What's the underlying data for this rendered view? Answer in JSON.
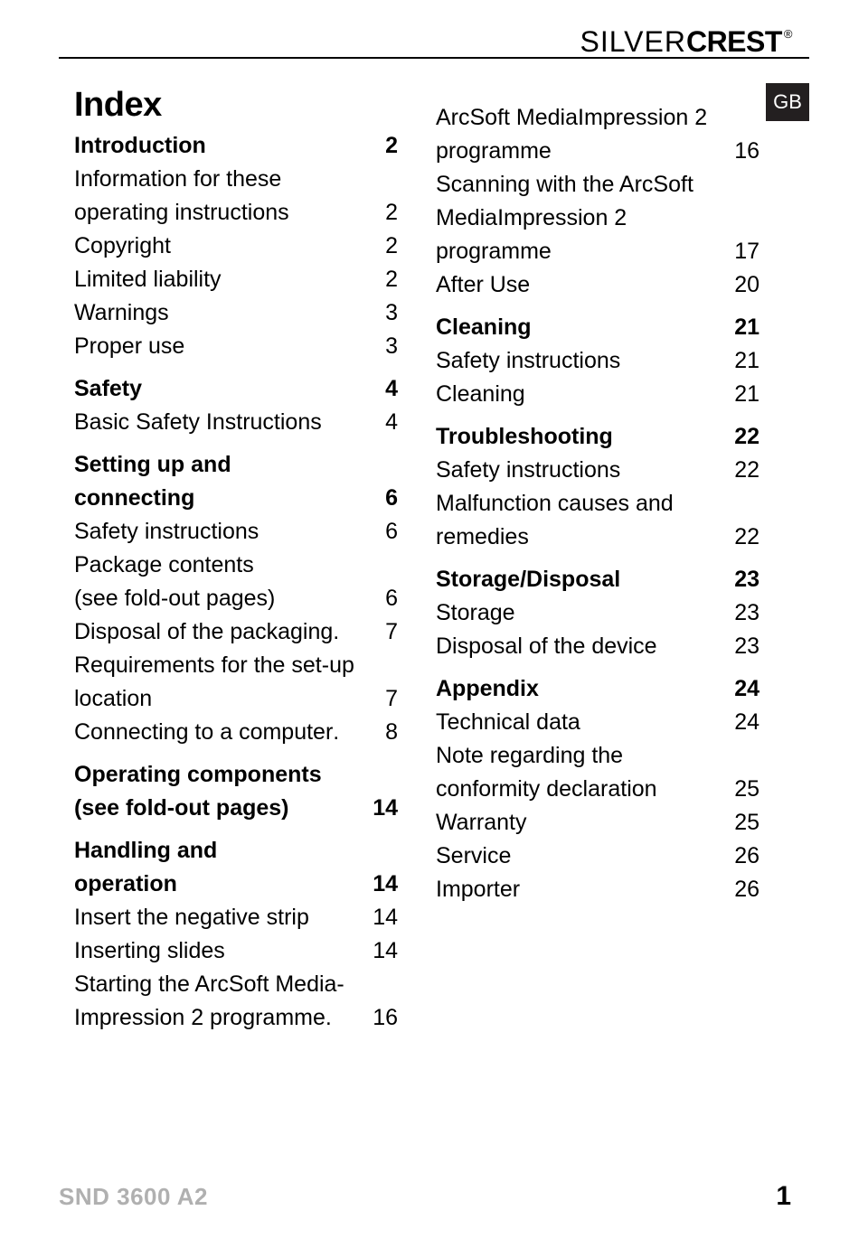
{
  "brand": {
    "part1": "SILVER",
    "part2": "CREST",
    "reg": "®"
  },
  "lang_tab": "GB",
  "index_title": "Index",
  "footer": {
    "model": "SND 3600 A2",
    "page": "1"
  },
  "col_left": [
    {
      "type": "entry",
      "bold": true,
      "label": "Introduction",
      "page": "2"
    },
    {
      "type": "wrap",
      "text": "Information for these"
    },
    {
      "type": "entry",
      "label": "operating instructions",
      "page": "2"
    },
    {
      "type": "entry",
      "label": "Copyright",
      "page": "2"
    },
    {
      "type": "entry",
      "label": "Limited liability",
      "page": "2"
    },
    {
      "type": "entry",
      "label": "Warnings",
      "page": "3"
    },
    {
      "type": "entry",
      "label": "Proper use",
      "page": "3"
    },
    {
      "type": "entry",
      "bold": true,
      "section": true,
      "label": "Safety",
      "page": "4"
    },
    {
      "type": "entry",
      "label": "Basic Safety Instructions",
      "page": "4"
    },
    {
      "type": "wrap",
      "bold": true,
      "section": true,
      "text": "Setting up and"
    },
    {
      "type": "entry",
      "bold": true,
      "label": "connecting ",
      "page": "6"
    },
    {
      "type": "entry",
      "label": "Safety instructions",
      "page": "6"
    },
    {
      "type": "wrap",
      "text": "Package contents"
    },
    {
      "type": "entry",
      "label": "(see fold-out pages)",
      "page": "6"
    },
    {
      "type": "entry",
      "label": "Disposal of the packaging",
      "page": "7",
      "noleader": true
    },
    {
      "type": "wrap",
      "text": "Requirements for the set-up"
    },
    {
      "type": "entry",
      "label": "location ",
      "page": "7"
    },
    {
      "type": "entry",
      "label": "Connecting to a computer",
      "page": "8",
      "noleader": true
    },
    {
      "type": "wrap",
      "bold": true,
      "section": true,
      "text": "Operating components"
    },
    {
      "type": "entry",
      "bold": true,
      "label": "(see fold-out pages)",
      "page": "14",
      "short": true
    },
    {
      "type": "wrap",
      "bold": true,
      "section": true,
      "text": "Handling and"
    },
    {
      "type": "entry",
      "bold": true,
      "label": "operation",
      "page": "14"
    },
    {
      "type": "entry",
      "label": "Insert the negative strip",
      "page": "14"
    },
    {
      "type": "entry",
      "label": "Inserting slides ",
      "page": "14"
    },
    {
      "type": "wrap",
      "text": "Starting the ArcSoft Media-"
    },
    {
      "type": "entry",
      "label": "Impression 2 programme ",
      "page": "16",
      "noleader": true
    }
  ],
  "col_right": [
    {
      "type": "wrap",
      "text": "ArcSoft MediaImpression 2"
    },
    {
      "type": "entry",
      "label": "programme",
      "page": "16"
    },
    {
      "type": "wrap",
      "text": "Scanning with the ArcSoft"
    },
    {
      "type": "wrap",
      "text": "MediaImpression 2"
    },
    {
      "type": "entry",
      "label": "programme ",
      "page": "17"
    },
    {
      "type": "entry",
      "label": "After Use ",
      "page": "20"
    },
    {
      "type": "entry",
      "bold": true,
      "section": true,
      "label": "Cleaning ",
      "page": "21"
    },
    {
      "type": "entry",
      "label": "Safety instructions",
      "page": "21"
    },
    {
      "type": "entry",
      "label": "Cleaning",
      "page": "21"
    },
    {
      "type": "entry",
      "bold": true,
      "section": true,
      "label": "Troubleshooting ",
      "page": "22"
    },
    {
      "type": "entry",
      "label": "Safety instructions",
      "page": "22"
    },
    {
      "type": "wrap",
      "text": "Malfunction causes and"
    },
    {
      "type": "entry",
      "label": "remedies",
      "page": "22"
    },
    {
      "type": "entry",
      "bold": true,
      "section": true,
      "label": "Storage/Disposal ",
      "page": "23"
    },
    {
      "type": "entry",
      "label": "Storage",
      "page": "23"
    },
    {
      "type": "entry",
      "label": "Disposal of the device ",
      "page": "23"
    },
    {
      "type": "entry",
      "bold": true,
      "section": true,
      "label": "Appendix",
      "page": "24"
    },
    {
      "type": "entry",
      "label": "Technical data ",
      "page": "24"
    },
    {
      "type": "wrap",
      "text": "Note regarding the"
    },
    {
      "type": "entry",
      "label": "conformity declaration ",
      "page": "25"
    },
    {
      "type": "entry",
      "label": "Warranty ",
      "page": "25"
    },
    {
      "type": "entry",
      "label": "Service ",
      "page": "26"
    },
    {
      "type": "entry",
      "label": "Importer ",
      "page": "26"
    }
  ]
}
